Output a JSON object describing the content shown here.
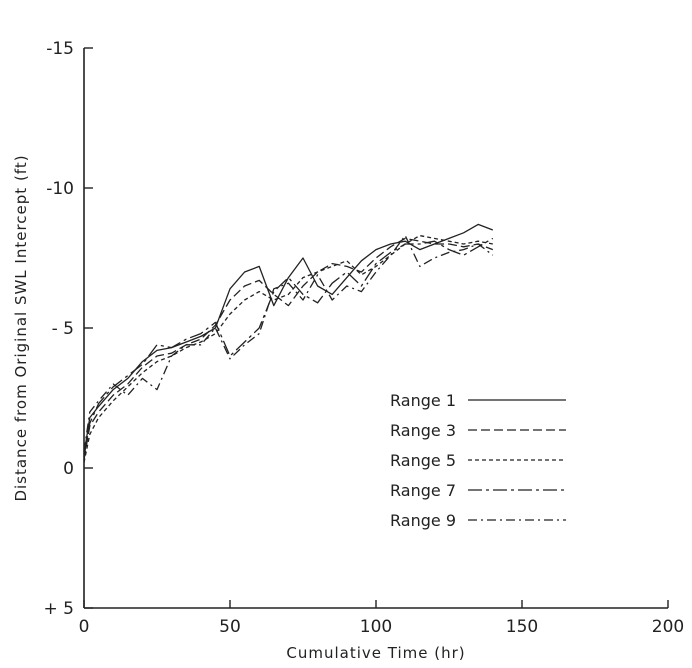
{
  "chart_data": {
    "type": "line",
    "title": "",
    "xlabel": "Cumulative Time (hr)",
    "ylabel": "Distance from Original SWL Intercept (ft)",
    "xlim": [
      0,
      200
    ],
    "ylim": [
      5,
      -15
    ],
    "y_inverted": true,
    "grid": false,
    "legend_position": "center-right",
    "x_ticks": [
      {
        "value": 0,
        "label": "0"
      },
      {
        "value": 50,
        "label": "50"
      },
      {
        "value": 100,
        "label": "100"
      },
      {
        "value": 150,
        "label": "150"
      },
      {
        "value": 200,
        "label": "200"
      }
    ],
    "y_ticks": [
      {
        "value": -15,
        "label": "-15"
      },
      {
        "value": -10,
        "label": "-10"
      },
      {
        "value": -5,
        "label": "- 5"
      },
      {
        "value": 0,
        "label": "0"
      },
      {
        "value": 5,
        "label": "+ 5"
      }
    ],
    "series": [
      {
        "name": "Range 1",
        "dash": "solid",
        "points": [
          [
            0,
            -0.5
          ],
          [
            2,
            -1.8
          ],
          [
            5,
            -2.2
          ],
          [
            10,
            -2.8
          ],
          [
            15,
            -3.2
          ],
          [
            20,
            -3.8
          ],
          [
            25,
            -4.2
          ],
          [
            30,
            -4.3
          ],
          [
            35,
            -4.5
          ],
          [
            40,
            -4.7
          ],
          [
            45,
            -5.0
          ],
          [
            50,
            -6.4
          ],
          [
            55,
            -7.0
          ],
          [
            60,
            -7.2
          ],
          [
            65,
            -5.8
          ],
          [
            70,
            -6.8
          ],
          [
            75,
            -7.5
          ],
          [
            80,
            -6.5
          ],
          [
            85,
            -6.2
          ],
          [
            90,
            -6.8
          ],
          [
            95,
            -7.4
          ],
          [
            100,
            -7.8
          ],
          [
            105,
            -8.0
          ],
          [
            110,
            -8.1
          ],
          [
            115,
            -7.8
          ],
          [
            120,
            -8.0
          ],
          [
            125,
            -8.2
          ],
          [
            130,
            -8.4
          ],
          [
            135,
            -8.7
          ],
          [
            140,
            -8.5
          ]
        ]
      },
      {
        "name": "Range 3",
        "dash": "dashed",
        "points": [
          [
            0,
            -0.3
          ],
          [
            2,
            -1.5
          ],
          [
            5,
            -2.0
          ],
          [
            10,
            -2.6
          ],
          [
            15,
            -3.0
          ],
          [
            20,
            -3.6
          ],
          [
            25,
            -4.0
          ],
          [
            30,
            -4.1
          ],
          [
            35,
            -4.4
          ],
          [
            40,
            -4.6
          ],
          [
            45,
            -5.1
          ],
          [
            50,
            -6.0
          ],
          [
            55,
            -6.5
          ],
          [
            60,
            -6.7
          ],
          [
            65,
            -6.2
          ],
          [
            70,
            -5.8
          ],
          [
            75,
            -6.5
          ],
          [
            80,
            -7.0
          ],
          [
            85,
            -7.3
          ],
          [
            90,
            -7.2
          ],
          [
            95,
            -7.0
          ],
          [
            100,
            -7.5
          ],
          [
            105,
            -7.9
          ],
          [
            110,
            -8.2
          ],
          [
            115,
            -8.1
          ],
          [
            120,
            -8.0
          ],
          [
            125,
            -8.0
          ],
          [
            130,
            -7.9
          ],
          [
            135,
            -8.0
          ],
          [
            140,
            -7.8
          ]
        ]
      },
      {
        "name": "Range 5",
        "dash": "short-dashed",
        "points": [
          [
            0,
            -0.2
          ],
          [
            2,
            -1.2
          ],
          [
            5,
            -1.8
          ],
          [
            10,
            -2.4
          ],
          [
            15,
            -2.9
          ],
          [
            20,
            -3.4
          ],
          [
            25,
            -3.8
          ],
          [
            30,
            -4.0
          ],
          [
            35,
            -4.3
          ],
          [
            40,
            -4.5
          ],
          [
            45,
            -4.8
          ],
          [
            50,
            -5.5
          ],
          [
            55,
            -6.0
          ],
          [
            60,
            -6.3
          ],
          [
            65,
            -6.0
          ],
          [
            70,
            -6.2
          ],
          [
            75,
            -6.8
          ],
          [
            80,
            -7.0
          ],
          [
            85,
            -7.2
          ],
          [
            90,
            -7.4
          ],
          [
            95,
            -6.9
          ],
          [
            100,
            -7.2
          ],
          [
            105,
            -7.6
          ],
          [
            110,
            -8.0
          ],
          [
            115,
            -8.3
          ],
          [
            120,
            -8.2
          ],
          [
            125,
            -8.1
          ],
          [
            130,
            -8.0
          ],
          [
            135,
            -8.1
          ],
          [
            140,
            -8.0
          ]
        ]
      },
      {
        "name": "Range 7",
        "dash": "long-dash-dot",
        "points": [
          [
            0,
            -0.4
          ],
          [
            2,
            -1.6
          ],
          [
            5,
            -2.3
          ],
          [
            10,
            -2.9
          ],
          [
            15,
            -3.3
          ],
          [
            20,
            -3.7
          ],
          [
            25,
            -4.4
          ],
          [
            30,
            -4.3
          ],
          [
            35,
            -4.6
          ],
          [
            40,
            -4.8
          ],
          [
            45,
            -5.2
          ],
          [
            50,
            -4.0
          ],
          [
            55,
            -4.5
          ],
          [
            60,
            -5.0
          ],
          [
            65,
            -6.3
          ],
          [
            70,
            -6.8
          ],
          [
            75,
            -6.2
          ],
          [
            80,
            -5.9
          ],
          [
            85,
            -6.6
          ],
          [
            90,
            -7.0
          ],
          [
            95,
            -6.5
          ],
          [
            100,
            -7.3
          ],
          [
            105,
            -7.7
          ],
          [
            110,
            -8.0
          ],
          [
            115,
            -8.0
          ],
          [
            120,
            -8.1
          ],
          [
            125,
            -7.8
          ],
          [
            130,
            -7.6
          ],
          [
            135,
            -7.9
          ],
          [
            140,
            -8.2
          ]
        ]
      },
      {
        "name": "Range 9",
        "dash": "dash-dot",
        "points": [
          [
            0,
            -0.6
          ],
          [
            2,
            -2.0
          ],
          [
            5,
            -2.4
          ],
          [
            10,
            -3.0
          ],
          [
            15,
            -2.6
          ],
          [
            20,
            -3.2
          ],
          [
            25,
            -2.8
          ],
          [
            30,
            -4.0
          ],
          [
            35,
            -4.4
          ],
          [
            40,
            -4.4
          ],
          [
            45,
            -5.0
          ],
          [
            50,
            -3.9
          ],
          [
            55,
            -4.4
          ],
          [
            60,
            -4.8
          ],
          [
            65,
            -6.4
          ],
          [
            70,
            -6.6
          ],
          [
            75,
            -6.0
          ],
          [
            80,
            -6.9
          ],
          [
            85,
            -6.0
          ],
          [
            90,
            -6.5
          ],
          [
            95,
            -6.3
          ],
          [
            100,
            -7.0
          ],
          [
            105,
            -7.6
          ],
          [
            110,
            -8.3
          ],
          [
            115,
            -7.2
          ],
          [
            120,
            -7.5
          ],
          [
            125,
            -7.7
          ],
          [
            130,
            -7.8
          ],
          [
            135,
            -8.0
          ],
          [
            140,
            -7.6
          ]
        ]
      }
    ]
  }
}
